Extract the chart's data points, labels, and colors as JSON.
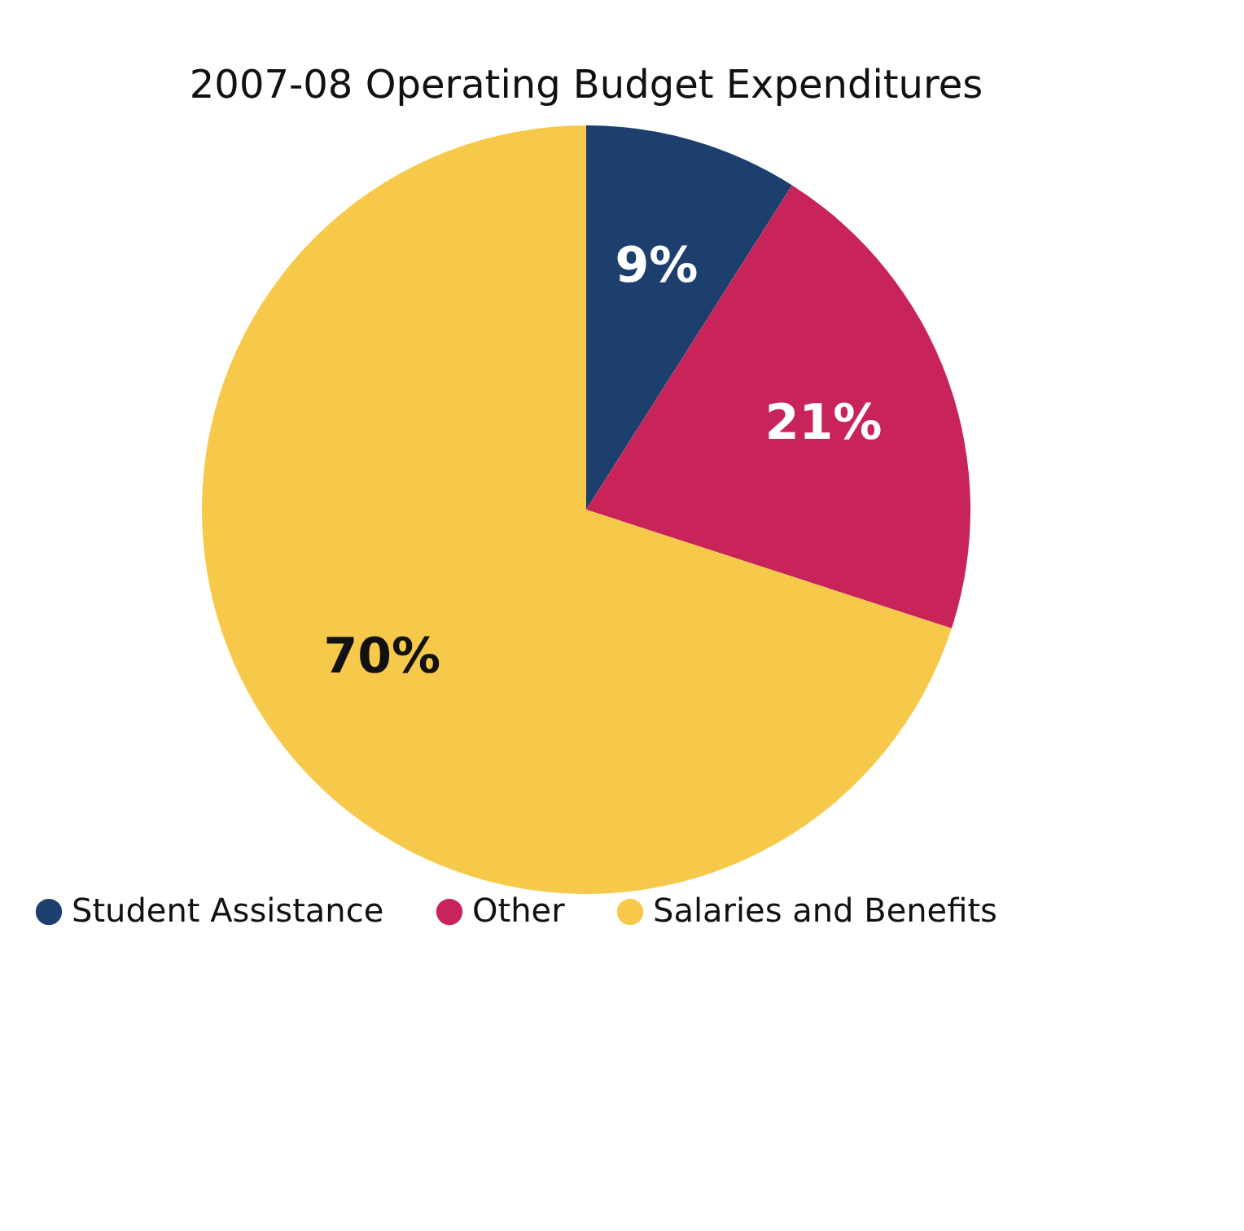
{
  "chart_data": {
    "type": "pie",
    "title": "2007-08 Operating Budget Expenditures",
    "categories": [
      "Student Assistance",
      "Other",
      "Salaries and Benefits"
    ],
    "values": [
      9,
      21,
      70
    ],
    "colors": [
      "#1d3f6e",
      "#c8245a",
      "#f7c94b"
    ],
    "value_labels": [
      "9%",
      "21%",
      "70%"
    ],
    "legend": "bottom"
  }
}
